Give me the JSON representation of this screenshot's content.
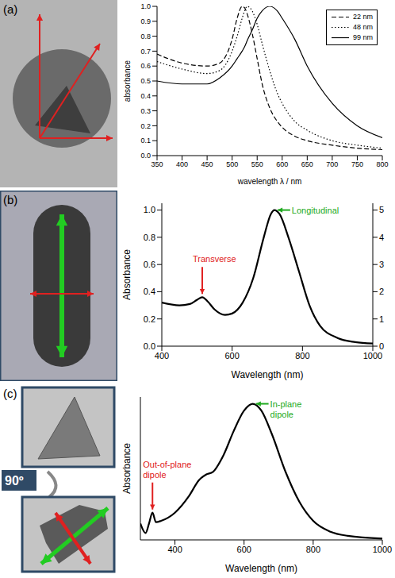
{
  "figure": {
    "panels": [
      "(a)",
      "(b)",
      "(c)"
    ],
    "rotation_label": "90º"
  },
  "chart_data": [
    {
      "type": "line",
      "xlabel": "wavelength λ / nm",
      "ylabel": "absorbance",
      "x": [
        350,
        400,
        450,
        475,
        500,
        510,
        520,
        525,
        530,
        540,
        550,
        560,
        575,
        590,
        600,
        625,
        650,
        700,
        750,
        800
      ],
      "xlim": [
        350,
        800
      ],
      "xticks": [
        350,
        400,
        450,
        500,
        550,
        600,
        650,
        700,
        750,
        800
      ],
      "ylim": [
        0,
        1
      ],
      "yticks": [
        {
          "value": 0,
          "label": "0.0"
        },
        0.1,
        0.2,
        0.3,
        0.4,
        0.5,
        0.6,
        0.7,
        0.8,
        0.9,
        {
          "value": 1,
          "label": "1.0"
        }
      ],
      "legend": "upper right",
      "series": [
        {
          "name": "22 nm",
          "color": "#000000",
          "line_style": "dashed",
          "values": [
            0.68,
            0.62,
            0.6,
            0.62,
            0.78,
            0.92,
            1.0,
            0.99,
            0.95,
            0.82,
            0.65,
            0.48,
            0.32,
            0.23,
            0.19,
            0.13,
            0.1,
            0.07,
            0.05,
            0.04
          ]
        },
        {
          "name": "48 nm",
          "color": "#000000",
          "line_style": "dotted",
          "values": [
            0.63,
            0.58,
            0.55,
            0.57,
            0.7,
            0.8,
            0.92,
            0.97,
            1.0,
            0.97,
            0.88,
            0.75,
            0.57,
            0.42,
            0.35,
            0.23,
            0.17,
            0.1,
            0.07,
            0.05
          ]
        },
        {
          "name": "99 nm",
          "color": "#000000",
          "line_style": "solid",
          "values": [
            0.5,
            0.48,
            0.48,
            0.52,
            0.6,
            0.65,
            0.7,
            0.73,
            0.77,
            0.84,
            0.92,
            0.97,
            1.0,
            0.97,
            0.92,
            0.78,
            0.6,
            0.35,
            0.2,
            0.12
          ]
        }
      ]
    },
    {
      "type": "line",
      "xlabel": "Wavelength (nm)",
      "ylabel": "Absorbance",
      "x": [
        400,
        450,
        480,
        500,
        515,
        530,
        550,
        580,
        600,
        630,
        660,
        690,
        710,
        720,
        735,
        760,
        790,
        820,
        850,
        900,
        950,
        1000
      ],
      "xlim": [
        400,
        1000
      ],
      "xticks": [
        400,
        600,
        800,
        1000
      ],
      "ylim": [
        0,
        1.05
      ],
      "yticks": [
        {
          "value": 0,
          "label": "0.0"
        },
        0.2,
        0.4,
        0.6,
        0.8,
        {
          "value": 1,
          "label": "1.0"
        }
      ],
      "y2lim": [
        0,
        5.25
      ],
      "y2ticks": [
        0,
        1,
        2,
        3,
        4,
        5
      ],
      "series": [
        {
          "color": "#000000",
          "line_style": "solid",
          "values": [
            0.32,
            0.3,
            0.31,
            0.34,
            0.36,
            0.33,
            0.27,
            0.23,
            0.24,
            0.32,
            0.5,
            0.8,
            0.97,
            1.0,
            0.97,
            0.8,
            0.55,
            0.3,
            0.15,
            0.06,
            0.03,
            0.02
          ]
        }
      ],
      "annotations": [
        {
          "text": "Transverse",
          "x": 515,
          "y": 0.36,
          "color": "#e02020"
        },
        {
          "text": "Longitudinal",
          "x": 720,
          "y": 1.0,
          "color": "#22aa22"
        }
      ]
    },
    {
      "type": "line",
      "xlabel": "Wavelength (nm)",
      "ylabel": "Absorbance",
      "x": [
        300,
        315,
        325,
        335,
        345,
        360,
        400,
        440,
        470,
        490,
        510,
        540,
        570,
        600,
        625,
        650,
        680,
        720,
        760,
        800,
        850,
        900,
        1000
      ],
      "xlim": [
        300,
        1000
      ],
      "xticks": [
        400,
        600,
        800,
        1000
      ],
      "ylim": [
        0,
        1.05
      ],
      "tick_labels": "x",
      "series": [
        {
          "color": "#000000",
          "line_style": "solid",
          "values": [
            0.12,
            0.05,
            0.12,
            0.2,
            0.13,
            0.14,
            0.2,
            0.32,
            0.44,
            0.48,
            0.5,
            0.62,
            0.8,
            0.95,
            1.0,
            0.95,
            0.78,
            0.5,
            0.28,
            0.14,
            0.06,
            0.03,
            0.01
          ]
        }
      ],
      "annotations": [
        {
          "text": "Out-of-plane dipole",
          "x": 335,
          "y": 0.2,
          "color": "#e02020"
        },
        {
          "text": "In-plane dipole",
          "x": 625,
          "y": 1.0,
          "color": "#22aa22"
        }
      ]
    }
  ]
}
